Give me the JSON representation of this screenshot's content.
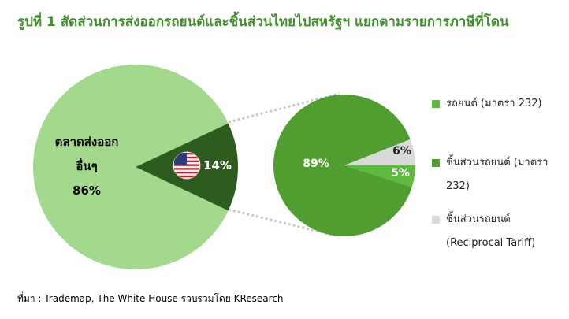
{
  "chart_data": {
    "type": "pie_of_pie",
    "title": "รูปที่ 1 สัดส่วนการส่งออกรถยนต์และชิ้นส่วนไทยไปสหรัฐฯ แยกตามรายการภาษีที่โดน",
    "source": "ที่มา : Trademap, The White House รวบรวมโดย KResearch",
    "main": {
      "labels": [
        "ตลาดส่งออก อื่นๆ",
        null
      ],
      "values": [
        86,
        14
      ],
      "value_labels": [
        "86%",
        "14%"
      ],
      "colors": [
        "#a2d98c",
        "#2d5c1e"
      ]
    },
    "detail": {
      "categories": [
        "รถยนต์ (มาตรา 232)",
        "ชิ้นส่วนรถยนต์ (มาตรา 232)",
        "ชิ้นส่วนรถยนต์ (Reciprocal Tariff)"
      ],
      "values": [
        5,
        89,
        6
      ],
      "value_labels": [
        "5%",
        "89%",
        "6%"
      ],
      "colors": [
        "#5cba3c",
        "#4f9e2f",
        "#d9d9d9"
      ]
    }
  }
}
